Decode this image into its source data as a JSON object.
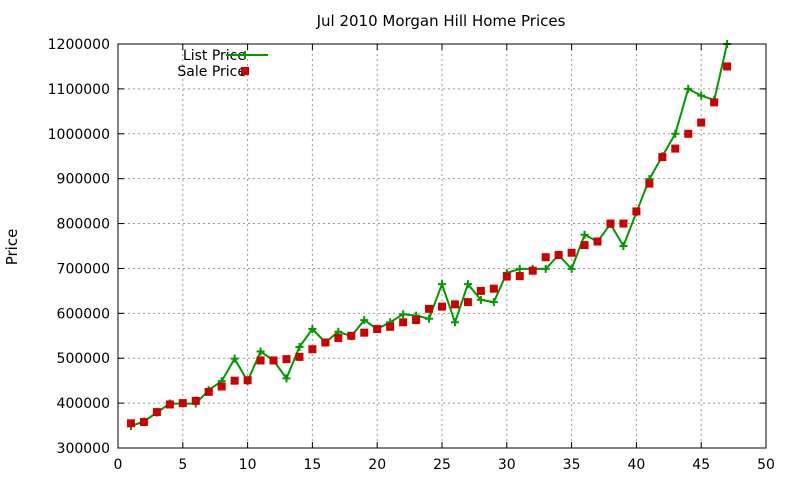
{
  "chart_data": {
    "type": "line",
    "title": "Jul 2010 Morgan Hill Home Prices",
    "xlabel": "",
    "ylabel": "Price",
    "xlim": [
      0,
      50
    ],
    "ylim": [
      300000,
      1200000
    ],
    "x_ticks": [
      0,
      5,
      10,
      15,
      20,
      25,
      30,
      35,
      40,
      45,
      50
    ],
    "y_ticks": [
      300000,
      400000,
      500000,
      600000,
      700000,
      800000,
      900000,
      1000000,
      1100000,
      1200000
    ],
    "grid": true,
    "legend_position": "top-left",
    "series": [
      {
        "name": "List Price",
        "style": "line-with-plus-markers",
        "color": "#009900",
        "x": [
          1,
          2,
          3,
          4,
          5,
          6,
          7,
          8,
          9,
          10,
          11,
          12,
          13,
          14,
          15,
          16,
          17,
          18,
          19,
          20,
          21,
          22,
          23,
          24,
          25,
          26,
          27,
          28,
          29,
          30,
          31,
          32,
          33,
          34,
          35,
          36,
          37,
          38,
          39,
          40,
          41,
          42,
          43,
          44,
          45,
          46,
          47
        ],
        "values": [
          349000,
          359000,
          379000,
          399000,
          399000,
          399000,
          429000,
          449000,
          499000,
          449000,
          515000,
          495000,
          455000,
          525000,
          565000,
          535000,
          559000,
          549000,
          585000,
          565000,
          580000,
          598000,
          595000,
          588000,
          665000,
          580000,
          665000,
          630000,
          625000,
          690000,
          699000,
          699000,
          699000,
          730000,
          699000,
          775000,
          760000,
          799000,
          750000,
          825000,
          899000,
          950000,
          1000000,
          1100000,
          1085000,
          1075000,
          1200000
        ]
      },
      {
        "name": "Sale Price",
        "style": "square-markers",
        "color": "#cc0000",
        "x": [
          1,
          2,
          3,
          4,
          5,
          6,
          7,
          8,
          9,
          10,
          11,
          12,
          13,
          14,
          15,
          16,
          17,
          18,
          19,
          20,
          21,
          22,
          23,
          24,
          25,
          26,
          27,
          28,
          29,
          30,
          31,
          32,
          33,
          34,
          35,
          36,
          37,
          38,
          39,
          40,
          41,
          42,
          43,
          44,
          45,
          46,
          47
        ],
        "values": [
          355000,
          358000,
          380000,
          397000,
          400000,
          405000,
          425000,
          437000,
          450000,
          451000,
          495000,
          495000,
          498000,
          503000,
          520000,
          535000,
          545000,
          550000,
          557000,
          565000,
          570000,
          580000,
          585000,
          610000,
          615000,
          620000,
          625000,
          650000,
          655000,
          682000,
          683000,
          695000,
          725000,
          730000,
          735000,
          752000,
          760000,
          800000,
          800000,
          827000,
          889000,
          948000,
          967000,
          1000000,
          1025000,
          1070000,
          1150000
        ]
      }
    ]
  }
}
